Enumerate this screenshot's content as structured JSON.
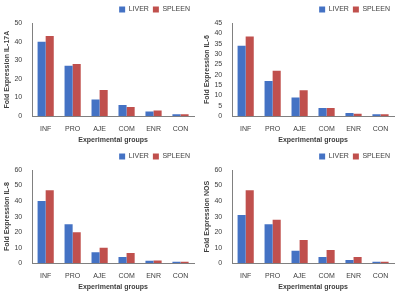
{
  "chart_data": [
    {
      "type": "bar",
      "y_label": "Fold Expression IL-17A",
      "x_label": "Experimental groups",
      "categories": [
        "INF",
        "PRO",
        "AJE",
        "COM",
        "ENR",
        "CON"
      ],
      "series": [
        {
          "name": "LIVER",
          "color": "#4472c4",
          "values": [
            40,
            27,
            9,
            6,
            2.5,
            1
          ]
        },
        {
          "name": "SPLEEN",
          "color": "#c0504d",
          "values": [
            43,
            28,
            14,
            5,
            3,
            1
          ]
        }
      ],
      "ylim": [
        0,
        50
      ],
      "yticks": [
        0,
        10,
        20,
        30,
        40,
        50
      ],
      "grid": false,
      "legend": "top-right"
    },
    {
      "type": "bar",
      "y_label": "Fold Expression IL-6",
      "x_label": "Experimental groups",
      "categories": [
        "INF",
        "PRO",
        "AJE",
        "COM",
        "ENR",
        "CON"
      ],
      "series": [
        {
          "name": "LIVER",
          "color": "#4472c4",
          "values": [
            34,
            17,
            9,
            4,
            1.5,
            1
          ]
        },
        {
          "name": "SPLEEN",
          "color": "#c0504d",
          "values": [
            38.5,
            22,
            12.5,
            4,
            1.2,
            1
          ]
        }
      ],
      "ylim": [
        0,
        45
      ],
      "yticks": [
        0,
        5,
        10,
        15,
        20,
        25,
        30,
        35,
        40,
        45
      ],
      "grid": false,
      "legend": "top-right"
    },
    {
      "type": "bar",
      "y_label": "Fold Expression IL-8",
      "x_label": "Experimental groups",
      "categories": [
        "INF",
        "PRO",
        "AJE",
        "COM",
        "ENR",
        "CON"
      ],
      "series": [
        {
          "name": "LIVER",
          "color": "#4472c4",
          "values": [
            40,
            25,
            7,
            4,
            1.5,
            1
          ]
        },
        {
          "name": "SPLEEN",
          "color": "#c0504d",
          "values": [
            47,
            20,
            10,
            6.5,
            1.8,
            1
          ]
        }
      ],
      "ylim": [
        0,
        60
      ],
      "yticks": [
        0,
        10,
        20,
        30,
        40,
        50,
        60
      ],
      "grid": false,
      "legend": "top-right"
    },
    {
      "type": "bar",
      "y_label": "Fold Expression NOS",
      "x_label": "Experimental groups",
      "categories": [
        "INF",
        "PRO",
        "AJE",
        "COM",
        "ENR",
        "CON"
      ],
      "series": [
        {
          "name": "LIVER",
          "color": "#4472c4",
          "values": [
            31,
            25,
            8,
            4,
            2,
            1
          ]
        },
        {
          "name": "SPLEEN",
          "color": "#c0504d",
          "values": [
            47,
            28,
            15,
            8.5,
            4,
            1
          ]
        }
      ],
      "ylim": [
        0,
        60
      ],
      "yticks": [
        0,
        10,
        20,
        30,
        40,
        50,
        60
      ],
      "grid": false,
      "legend": "top-right"
    }
  ]
}
